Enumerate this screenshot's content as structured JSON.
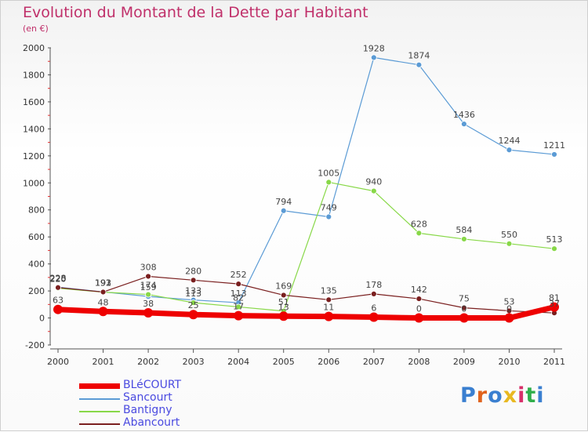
{
  "title": "Evolution du Montant de la Dette par Habitant",
  "unit": "(en €)",
  "logo": "Proxiti",
  "chart_data": {
    "type": "line",
    "title": "Evolution du Montant de la Dette par Habitant",
    "subtitle": "(en €)",
    "x": [
      "2000",
      "2001",
      "2002",
      "2003",
      "2004",
      "2005",
      "2006",
      "2007",
      "2008",
      "2009",
      "2010",
      "2011"
    ],
    "ylim": [
      -200,
      2000
    ],
    "yticks": [
      "-200",
      "0",
      "200",
      "400",
      "600",
      "800",
      "1000",
      "1200",
      "1400",
      "1600",
      "1800",
      "2000"
    ],
    "grid": false,
    "legend_position": "bottom-left",
    "series": [
      {
        "name": "BLéCOURT",
        "color": "#ee0000",
        "values": [
          63,
          48,
          38,
          25,
          17,
          13,
          11,
          6,
          0,
          0,
          0,
          81
        ],
        "labels": [
          "63",
          "48",
          "38",
          "25",
          "17",
          "13",
          "11",
          "6",
          "0",
          "0",
          "0",
          "81"
        ]
      },
      {
        "name": "Sancourt",
        "color": "#5b9bd5",
        "values": [
          228,
          193,
          159,
          133,
          113,
          794,
          749,
          1928,
          1874,
          1436,
          1244,
          1211
        ],
        "labels": [
          "228",
          "193",
          "159",
          "133",
          "113",
          "794",
          "749",
          "1928",
          "1874",
          "1436",
          "1244",
          "1211"
        ]
      },
      {
        "name": "Bantigny",
        "color": "#88d848",
        "values": [
          220,
          191,
          174,
          113,
          82,
          51,
          1005,
          940,
          628,
          584,
          550,
          513
        ],
        "labels": [
          "220",
          "191",
          "174",
          "113",
          "82",
          "51",
          "1005",
          "940",
          "628",
          "584",
          "550",
          "513"
        ]
      },
      {
        "name": "Abancourt",
        "color": "#7a1f1f",
        "values": [
          225,
          192,
          308,
          280,
          252,
          169,
          135,
          178,
          142,
          75,
          53,
          37
        ],
        "labels": [
          "225",
          "192",
          "308",
          "280",
          "252",
          "169",
          "135",
          "178",
          "142",
          "75",
          "53",
          "37"
        ]
      }
    ]
  }
}
